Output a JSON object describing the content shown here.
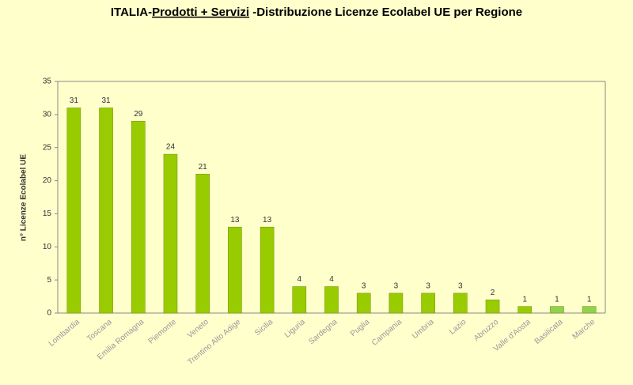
{
  "chart_data": {
    "type": "bar",
    "title": [
      "ITALIA-",
      "Prodotti + Servizi",
      " -Distribuzione Licenze Ecolabel UE per Regione"
    ],
    "y_label": "n° Licenze Ecolabel UE",
    "categories": [
      "Lombardia",
      "Toscana",
      "Emilia Romagna",
      "Piemonte",
      "Veneto",
      "Trentino Alto Adige",
      "Sicilia",
      "Liguria",
      "Sardegna",
      "Puglia",
      "Campania",
      "Umbria",
      "Lazio",
      "Abruzzo",
      "Valle d'Aosta",
      "Basilicata",
      "Marche"
    ],
    "values": [
      31,
      31,
      29,
      24,
      21,
      13,
      13,
      4,
      4,
      3,
      3,
      3,
      3,
      2,
      1,
      1,
      1
    ],
    "colors": [
      "#99cc00",
      "#99cc00",
      "#99cc00",
      "#99cc00",
      "#99cc00",
      "#99cc00",
      "#99cc00",
      "#99cc00",
      "#99cc00",
      "#99cc00",
      "#99cc00",
      "#99cc00",
      "#99cc00",
      "#99cc00",
      "#99cc00",
      "#92d050",
      "#92d050"
    ],
    "ylim": [
      0,
      35
    ],
    "yticks": [
      0,
      5,
      10,
      15,
      20,
      25,
      30,
      35
    ],
    "grid": false,
    "data_labels": true
  }
}
